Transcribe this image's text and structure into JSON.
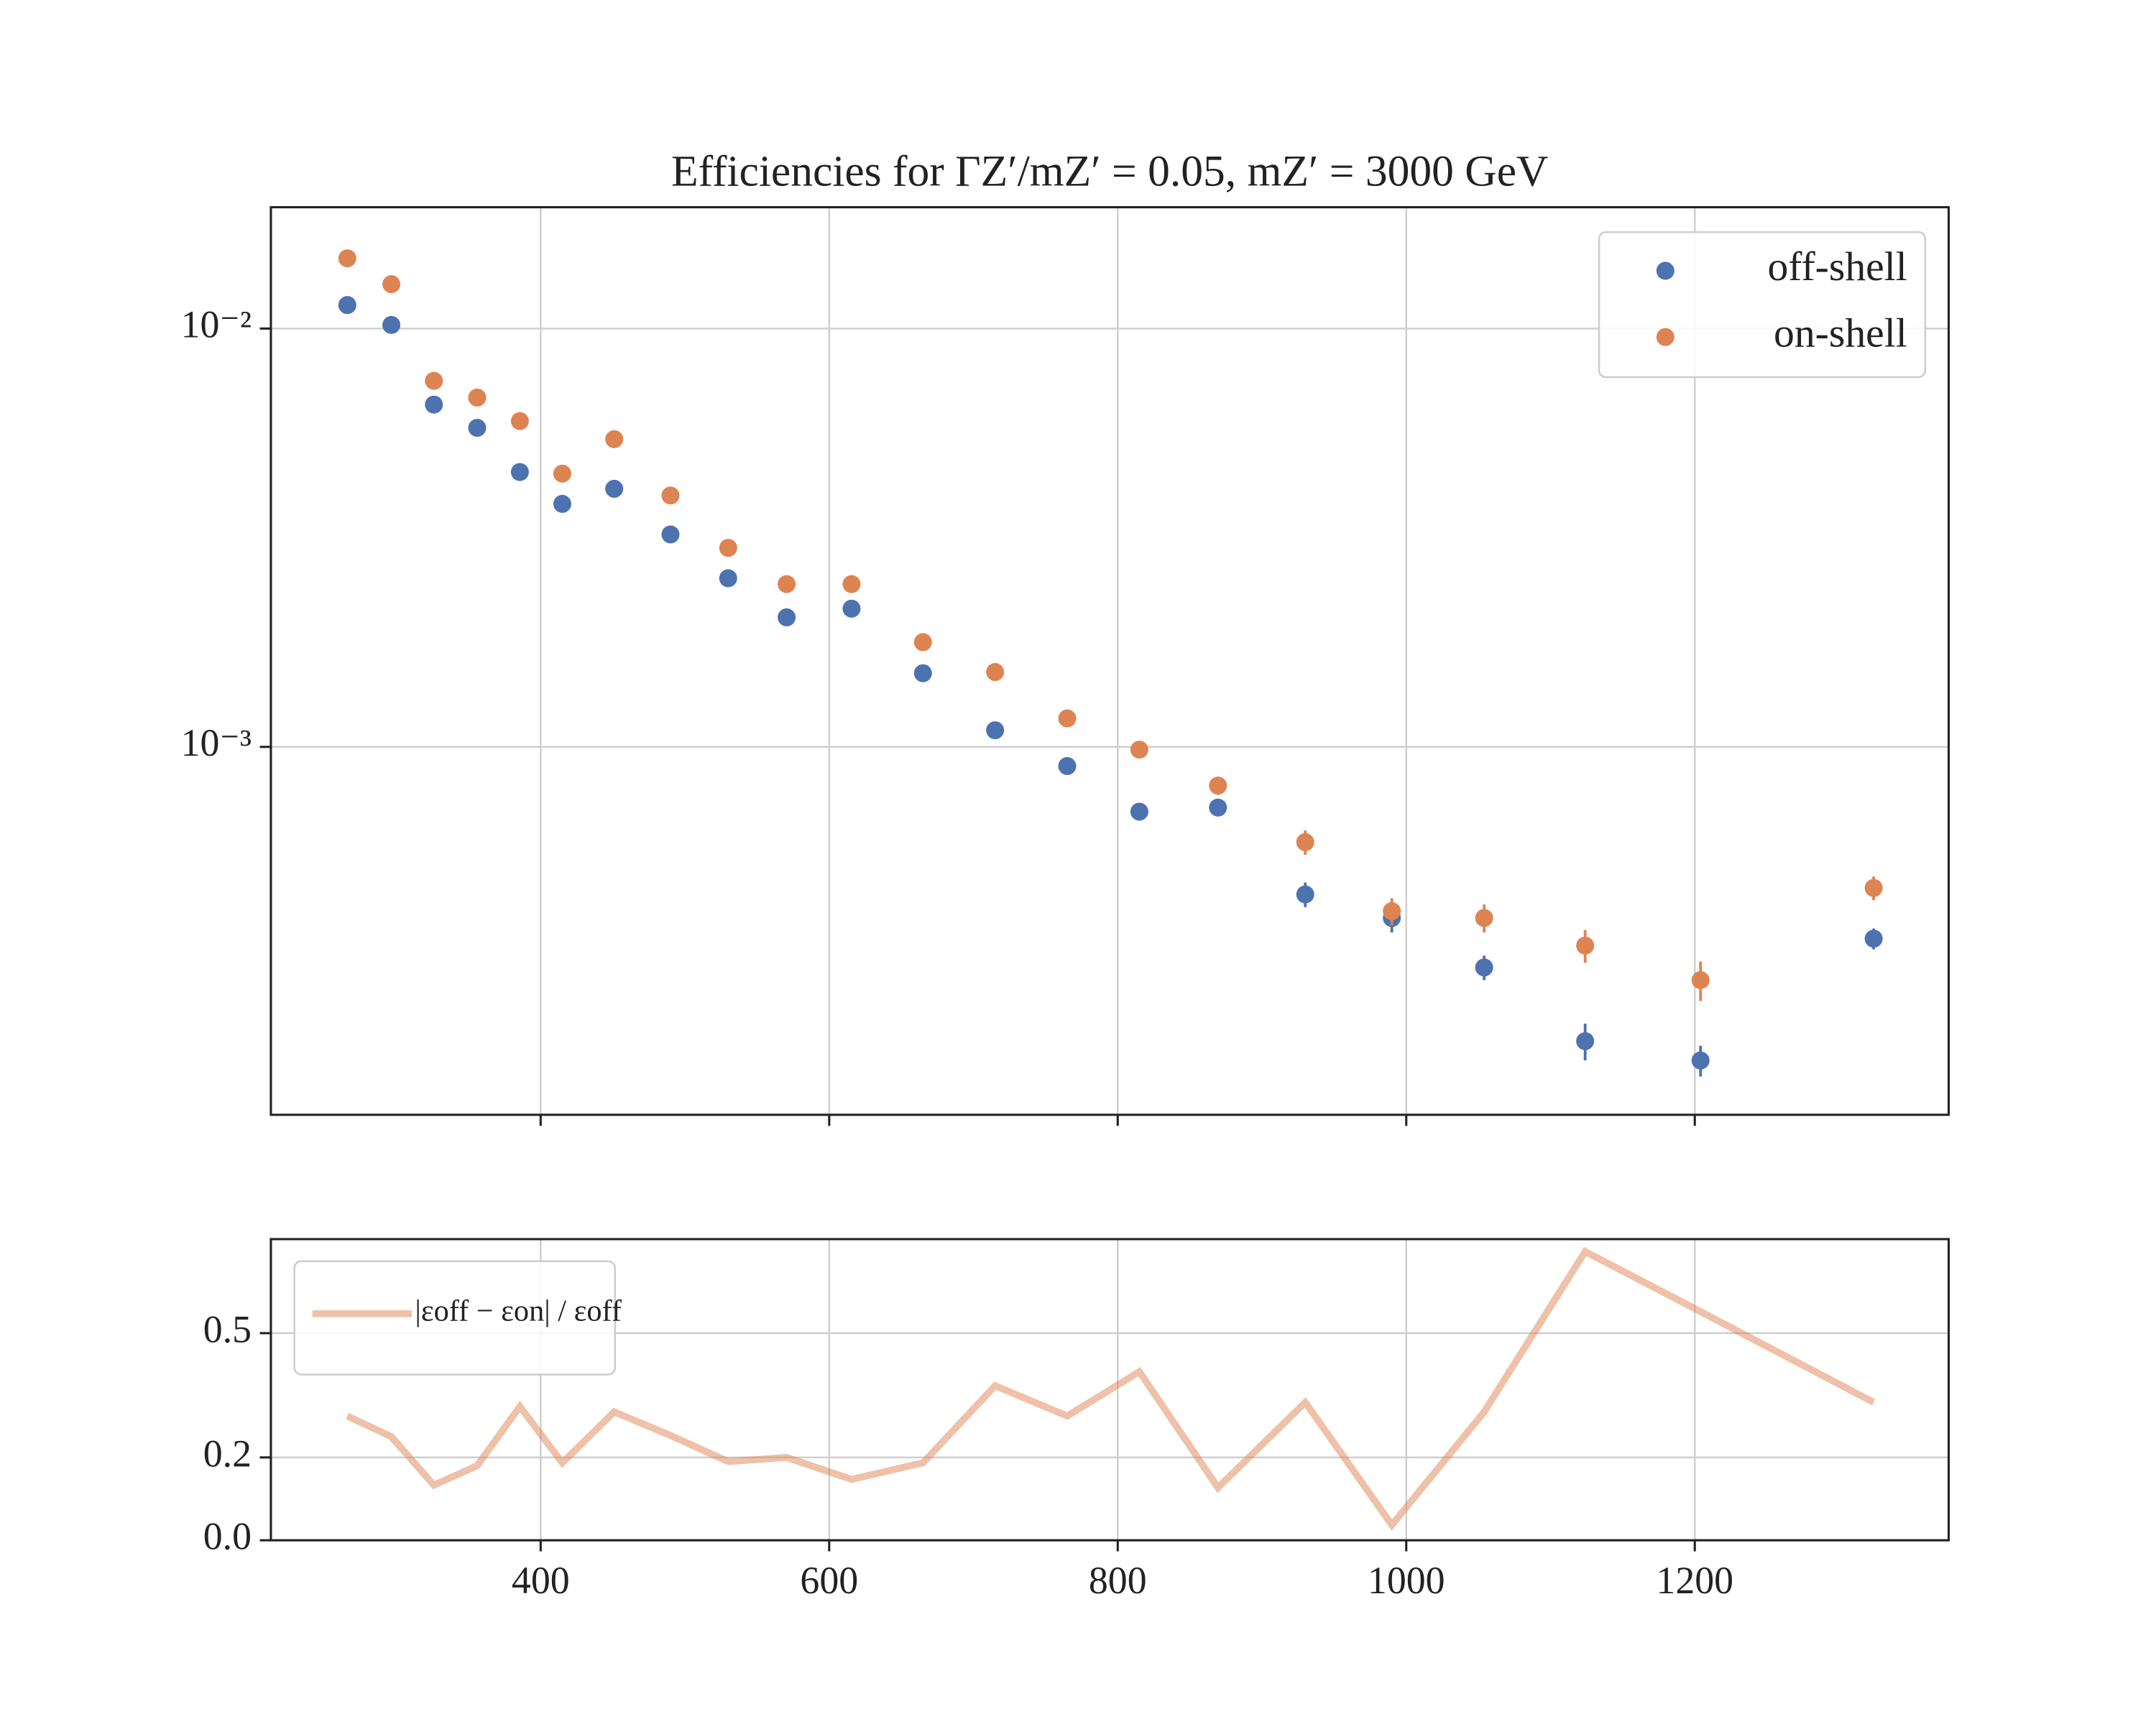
{
  "chart_data": [
    {
      "type": "scatter",
      "title": "Efficiencies for ΓZ′/mZ′ = 0.05, mZ′ = 3000 GeV",
      "x": [
        266,
        296.5,
        326,
        356,
        385.6,
        415,
        451,
        490,
        530,
        570.5,
        615.5,
        665,
        715,
        765,
        815,
        869.5,
        930,
        990,
        1054,
        1124,
        1204,
        1324
      ],
      "series": [
        {
          "name": "off-shell",
          "color": "#4c72b0",
          "values": [
            0.01138,
            0.0102,
            0.00658,
            0.00579,
            0.00454,
            0.00381,
            0.00414,
            0.00322,
            0.00253,
            0.00204,
            0.00214,
            0.0015,
            0.001096,
            0.0009,
            0.0007,
            0.000716,
            0.000444,
            0.00039,
            0.000297,
            0.000198,
            0.000178,
            0.000348
          ],
          "errors": [
            0.0003,
            0.0002,
            0.0002,
            0.00015,
            0.0001,
            0.0001,
            0.0001,
            7e-05,
            5e-05,
            4e-05,
            4e-05,
            3e-05,
            2e-05,
            2e-05,
            3e-05,
            3e-05,
            3e-05,
            3e-05,
            2e-05,
            2e-05,
            1.5e-05,
            2e-05
          ]
        },
        {
          "name": "on-shell",
          "color": "#dd8452",
          "values": [
            0.01472,
            0.01277,
            0.0075,
            0.00684,
            0.00601,
            0.0045,
            0.00544,
            0.00399,
            0.00299,
            0.00245,
            0.00245,
            0.00178,
            0.00151,
            0.00117,
            0.000985,
            0.000808,
            0.000592,
            0.000405,
            0.00039,
            0.000335,
            0.000277,
            0.00046
          ],
          "errors": [
            0.0003,
            0.0002,
            0.0002,
            0.00015,
            0.0001,
            0.0001,
            0.0001,
            7e-05,
            5e-05,
            4e-05,
            4e-05,
            3e-05,
            3e-05,
            4e-05,
            3e-05,
            4e-05,
            4e-05,
            3e-05,
            3e-05,
            3e-05,
            3e-05,
            3e-05
          ]
        }
      ],
      "xlim": [
        213,
        1376
      ],
      "xticks": [
        400,
        600,
        800,
        1000,
        1200
      ],
      "show_xtick_labels": false,
      "ylim": [
        0.000132,
        0.0195
      ],
      "log_y": true,
      "yticks": [
        {
          "value": 0.01,
          "label": "10⁻²"
        },
        {
          "value": 0.001,
          "label": "10⁻³"
        }
      ],
      "grid": true,
      "legend": "upper right"
    },
    {
      "type": "line",
      "x": [
        266,
        296.5,
        326,
        356,
        385.6,
        415,
        451,
        490,
        530,
        570.5,
        615.5,
        665,
        715,
        765,
        815,
        869.5,
        930,
        990,
        1054,
        1124,
        1204,
        1324
      ],
      "series": [
        {
          "name": "|εoff − εon| / εoff",
          "color": "#dd8452",
          "alpha": 0.5,
          "values": [
            0.3,
            0.25,
            0.133,
            0.18,
            0.323,
            0.187,
            0.31,
            0.253,
            0.19,
            0.2,
            0.147,
            0.187,
            0.373,
            0.3,
            0.407,
            0.127,
            0.333,
            0.037,
            0.31,
            0.697,
            0.552,
            0.333
          ]
        }
      ],
      "xlim": [
        213,
        1376
      ],
      "xticks": [
        400,
        600,
        800,
        1000,
        1200
      ],
      "show_xtick_labels": true,
      "ylim": [
        0,
        0.727
      ],
      "yticks": [
        {
          "value": 0,
          "label": "0.0"
        },
        {
          "value": 0.2,
          "label": "0.2"
        },
        {
          "value": 0.5,
          "label": "0.5"
        }
      ],
      "grid": true,
      "legend": "upper left"
    }
  ]
}
